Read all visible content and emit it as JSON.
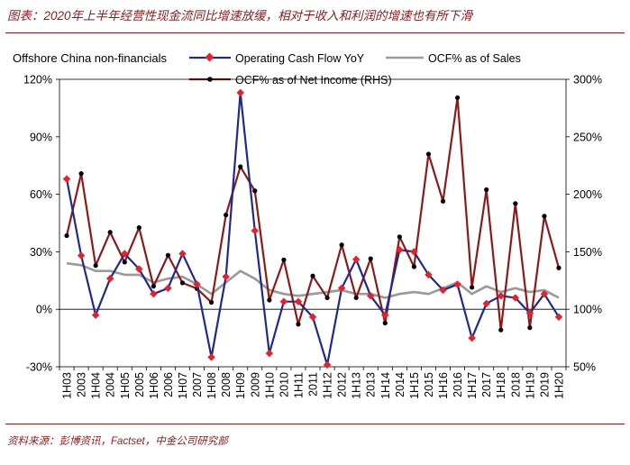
{
  "header": {
    "title": "图表：2020年上半年经营性现金流同比增速放缓，相对于收入和利润的增速也有所下滑"
  },
  "footer": {
    "source": "资料来源：彭博资讯，Factset，中金公司研究部"
  },
  "colors": {
    "ocf_yoy": "#1f2a8c",
    "ocf_sales": "#9a9a9a",
    "ocf_income": "#8b1a1a",
    "marker_ocf_yoy": "#e8202a",
    "marker_ocf_income": "#000000",
    "accent": "#8b1a1a"
  },
  "chart_data": {
    "type": "line",
    "title": "Offshore China non-financials",
    "categories": [
      "1H03",
      "2003",
      "1H04",
      "2004",
      "1H05",
      "2005",
      "1H06",
      "2006",
      "1H07",
      "2007",
      "1H08",
      "2008",
      "1H09",
      "2009",
      "1H10",
      "2010",
      "1H11",
      "2011",
      "1H12",
      "2012",
      "1H13",
      "2013",
      "1H14",
      "2014",
      "1H15",
      "2015",
      "1H16",
      "2016",
      "1H17",
      "2017",
      "1H18",
      "2018",
      "1H19",
      "2019",
      "1H20"
    ],
    "left_axis": {
      "min": -30,
      "max": 120,
      "ticks": [
        -30,
        0,
        30,
        60,
        90,
        120
      ],
      "tick_labels": [
        "-30%",
        "0%",
        "30%",
        "60%",
        "90%",
        "120%"
      ]
    },
    "right_axis": {
      "min": 50,
      "max": 300,
      "ticks": [
        50,
        100,
        150,
        200,
        250,
        300
      ],
      "tick_labels": [
        "50%",
        "100%",
        "150%",
        "200%",
        "250%",
        "300%"
      ]
    },
    "series": [
      {
        "name": "Operating Cash Flow YoY",
        "axis": "left",
        "color_key": "ocf_yoy",
        "values": [
          68,
          28,
          -3,
          16,
          29,
          21,
          8,
          11,
          29,
          13,
          -25,
          17,
          113,
          41,
          -23,
          4,
          4,
          -4,
          -29,
          11,
          26,
          7,
          -3,
          31,
          30,
          18,
          10,
          13,
          -15,
          3,
          7,
          6,
          -2,
          8,
          -4
        ]
      },
      {
        "name": "OCF% as of Sales",
        "axis": "left",
        "color_key": "ocf_sales",
        "values": [
          24,
          23,
          20,
          20,
          18,
          18,
          14,
          16,
          17,
          13,
          8,
          14,
          20,
          16,
          10,
          8,
          7,
          8,
          9,
          10,
          8,
          8,
          6,
          8,
          9,
          8,
          11,
          14,
          8,
          12,
          9,
          11,
          9,
          10,
          6
        ]
      },
      {
        "name": "OCF% as of Net Income (RHS)",
        "axis": "right",
        "color_key": "ocf_income",
        "values": [
          164,
          218,
          138,
          167,
          141,
          171,
          120,
          147,
          123,
          118,
          106,
          182,
          224,
          203,
          108,
          143,
          87,
          129,
          110,
          156,
          110,
          144,
          88,
          163,
          137,
          235,
          194,
          284,
          119,
          204,
          82,
          192,
          84,
          181,
          136
        ]
      }
    ],
    "legend": [
      "Operating Cash Flow YoY",
      "OCF% as of Sales",
      "OCF% as of Net Income (RHS)"
    ],
    "legend_position": "top"
  }
}
